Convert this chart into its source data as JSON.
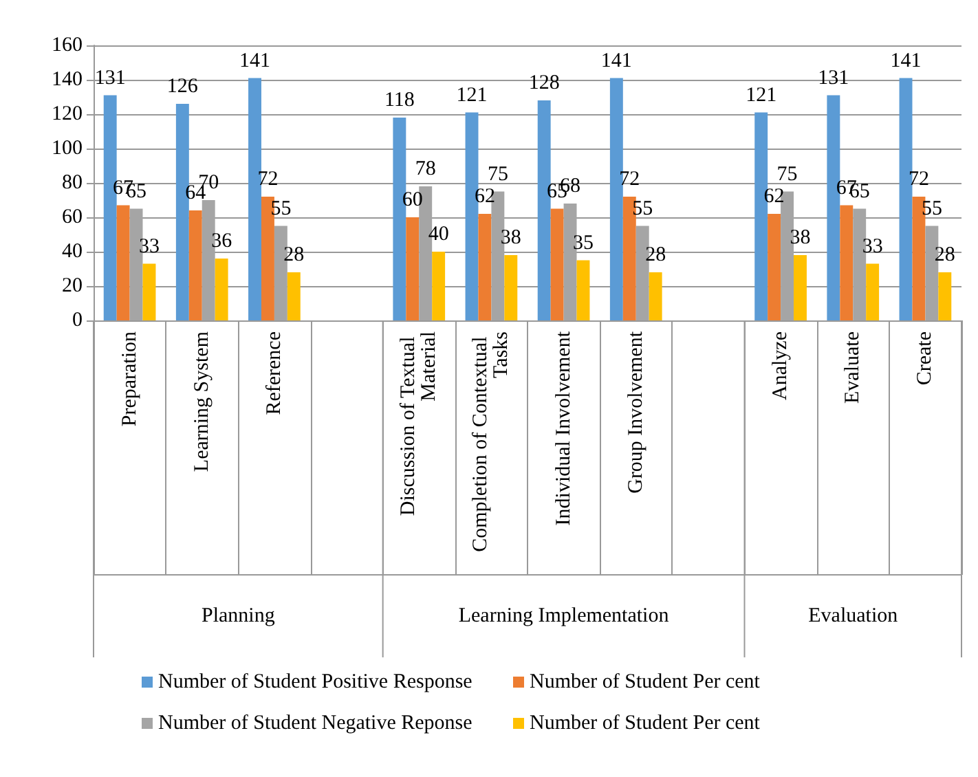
{
  "chart_data": {
    "type": "bar",
    "categories": [
      "Preparation",
      "Learning System",
      "Reference",
      null,
      "Discussion of Textual Material",
      "Completion of Contextual Tasks",
      "Individual Involvement",
      "Group Involvement",
      null,
      "Analyze",
      "Evaluate",
      "Create"
    ],
    "series": [
      {
        "name": "Number of Student Positive Response",
        "color": "#5b9bd5",
        "values": [
          131,
          126,
          141,
          null,
          118,
          121,
          128,
          141,
          null,
          121,
          131,
          141
        ]
      },
      {
        "name": "Number of Student Per cent",
        "color": "#ed7d31",
        "values": [
          67,
          64,
          72,
          null,
          60,
          62,
          65,
          72,
          null,
          62,
          67,
          72
        ]
      },
      {
        "name": "Number of Student Negative Reponse",
        "color": "#a5a5a5",
        "values": [
          65,
          70,
          55,
          null,
          78,
          75,
          68,
          55,
          null,
          75,
          65,
          55
        ]
      },
      {
        "name": "Number of Student Per cent",
        "color": "#ffc000",
        "values": [
          33,
          36,
          28,
          null,
          40,
          38,
          35,
          28,
          null,
          38,
          33,
          28
        ]
      }
    ],
    "annotations": [
      "Planning",
      "Learning Implementation",
      "Evaluation"
    ],
    "ylim": [
      0,
      160
    ],
    "yticks": [
      0,
      20,
      40,
      60,
      80,
      100,
      120,
      140,
      160
    ],
    "grid": "y",
    "legend": "bottom",
    "data_labels": true
  }
}
